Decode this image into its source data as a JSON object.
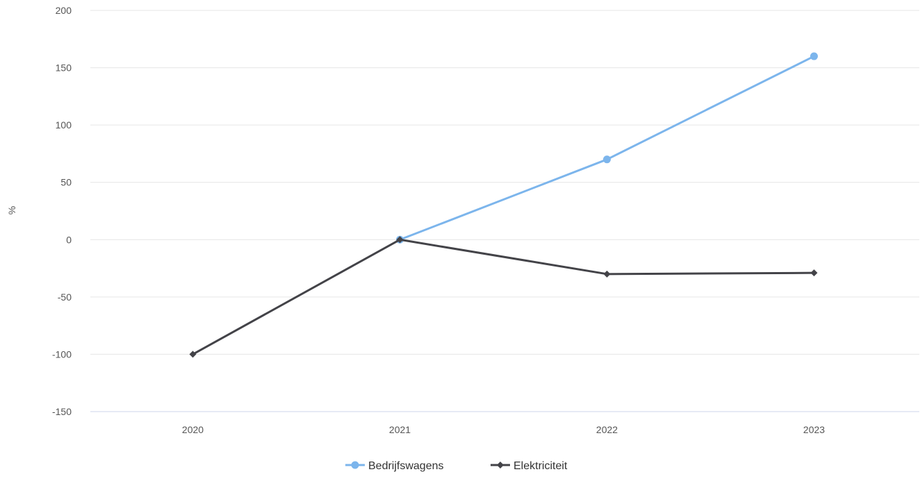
{
  "chart_data": {
    "type": "line",
    "title": "",
    "xlabel": "",
    "ylabel": "%",
    "categories": [
      "2020",
      "2021",
      "2022",
      "2023"
    ],
    "ylim": [
      -150,
      200
    ],
    "yticks": [
      200,
      150,
      100,
      50,
      0,
      -50,
      -100,
      -150
    ],
    "grid": true,
    "legend_position": "bottom-center",
    "series": [
      {
        "name": "Bedrijfswagens",
        "values": [
          null,
          0,
          70,
          160
        ],
        "color": "#7cb5ec",
        "marker": "circle"
      },
      {
        "name": "Elektriciteit",
        "values": [
          -100,
          0,
          -30,
          -29
        ],
        "color": "#434348",
        "marker": "diamond"
      }
    ]
  }
}
